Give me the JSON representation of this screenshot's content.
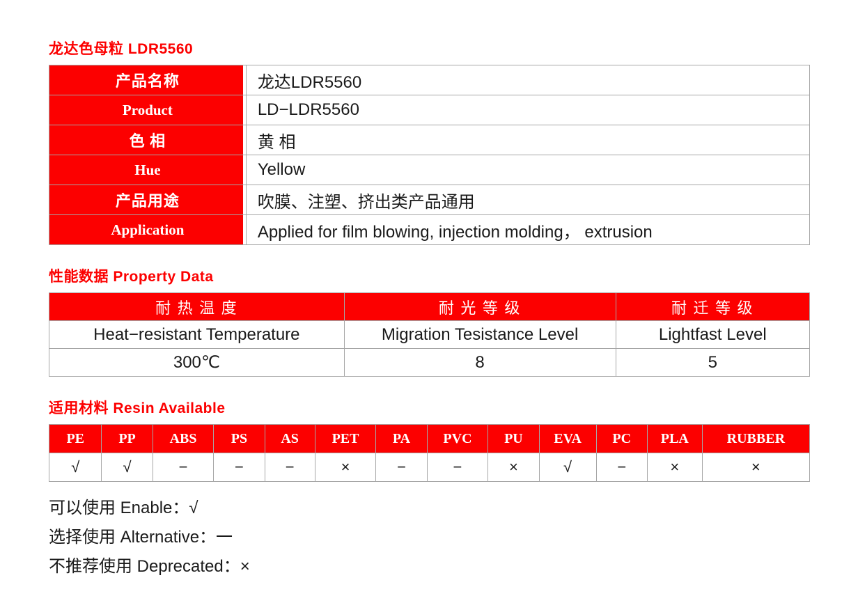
{
  "page": {
    "title": "龙达色母粒 LDR5560",
    "accent_color": "#fc0000"
  },
  "product_table": {
    "rows": [
      {
        "label": "产品名称",
        "lang": "zh",
        "value": "龙达LDR5560"
      },
      {
        "label": "Product",
        "lang": "en",
        "value": "LD−LDR5560"
      },
      {
        "label": "色 相",
        "lang": "zh",
        "value": "黄 相"
      },
      {
        "label": "Hue",
        "lang": "en",
        "value": "Yellow"
      },
      {
        "label": "产品用途",
        "lang": "zh",
        "value": "吹膜、注塑、挤出类产品通用"
      },
      {
        "label": "Application",
        "lang": "en",
        "value": "Applied for film blowing, injection molding， extrusion"
      }
    ]
  },
  "property_section": {
    "title": "性能数据 Property Data",
    "columns": [
      {
        "header_zh": "耐 热 温 度",
        "header_en": "Heat−resistant Temperature",
        "value": "300℃"
      },
      {
        "header_zh": "耐 光 等 级",
        "header_en": "Migration Tesistance Level",
        "value": "8"
      },
      {
        "header_zh": "耐 迁 等 级",
        "header_en": "Lightfast Level",
        "value": "5"
      }
    ]
  },
  "resin_section": {
    "title": "适用材料 Resin Available",
    "materials": [
      {
        "name": "PE",
        "status": "√",
        "width": "6.8%"
      },
      {
        "name": "PP",
        "status": "√",
        "width": "6.6%"
      },
      {
        "name": "ABS",
        "status": "−",
        "width": "7.9%"
      },
      {
        "name": "PS",
        "status": "−",
        "width": "6.6%"
      },
      {
        "name": "AS",
        "status": "−",
        "width": "6.5%"
      },
      {
        "name": "PET",
        "status": "×",
        "width": "7.9%"
      },
      {
        "name": "PA",
        "status": "−",
        "width": "6.6%"
      },
      {
        "name": "PVC",
        "status": "−",
        "width": "7.9%"
      },
      {
        "name": "PU",
        "status": "×",
        "width": "6.6%"
      },
      {
        "name": "EVA",
        "status": "√",
        "width": "7.4%"
      },
      {
        "name": "PC",
        "status": "−",
        "width": "6.6%"
      },
      {
        "name": "PLA",
        "status": "×",
        "width": "7.1%"
      },
      {
        "name": "RUBBER",
        "status": "×",
        "width": "13.9%"
      }
    ]
  },
  "legend": {
    "lines": [
      "可以使用 Enable：√",
      "选择使用 Alternative：一",
      "不推荐使用 Deprecated：×"
    ]
  }
}
